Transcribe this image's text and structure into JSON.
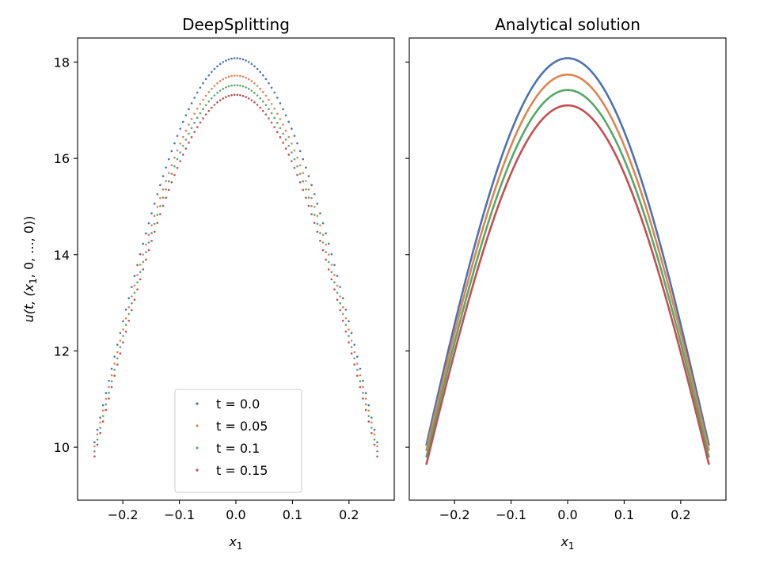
{
  "chart_data": [
    {
      "type": "scatter",
      "title": "DeepSplitting",
      "xlabel": "x",
      "xlabel_sub": "1",
      "ylabel": "u(t, (x",
      "ylabel_sub": "1",
      "ylabel_tail": ", 0, ..., 0))",
      "xlim": [
        -0.28,
        0.28
      ],
      "ylim": [
        8.9,
        18.5
      ],
      "xticks": [
        -0.2,
        -0.1,
        0.0,
        0.1,
        0.2
      ],
      "xticklabels": [
        "−0.2",
        "−0.1",
        "0.0",
        "0.1",
        "0.2"
      ],
      "yticks": [
        10,
        12,
        14,
        16,
        18
      ],
      "yticklabels": [
        "10",
        "12",
        "14",
        "16",
        "18"
      ],
      "legend": "bottom-center",
      "x_range": [
        -0.25,
        0.25
      ],
      "n_points": 100,
      "series": [
        {
          "name": "t = 0.0",
          "peak": 18.08,
          "edge": 9.72,
          "color": "#4c72b0"
        },
        {
          "name": "t = 0.05",
          "peak": 17.72,
          "edge": 9.65,
          "color": "#dd8452"
        },
        {
          "name": "t = 0.1",
          "peak": 17.52,
          "edge": 9.55,
          "color": "#55a868"
        },
        {
          "name": "t = 0.15",
          "peak": 17.32,
          "edge": 9.45,
          "color": "#c44e52"
        }
      ]
    },
    {
      "type": "line",
      "title": "Analytical solution",
      "xlabel": "x",
      "xlabel_sub": "1",
      "xlim": [
        -0.28,
        0.28
      ],
      "ylim": [
        8.9,
        18.5
      ],
      "xticks": [
        -0.2,
        -0.1,
        0.0,
        0.1,
        0.2
      ],
      "xticklabels": [
        "−0.2",
        "−0.1",
        "0.0",
        "0.1",
        "0.2"
      ],
      "yticks": [
        10,
        12,
        14,
        16,
        18
      ],
      "x_range": [
        -0.25,
        0.25
      ],
      "series": [
        {
          "peak": 18.08,
          "edge": 9.65,
          "color": "#4c72b0"
        },
        {
          "peak": 17.74,
          "edge": 9.55,
          "color": "#dd8452"
        },
        {
          "peak": 17.42,
          "edge": 9.42,
          "color": "#55a868"
        },
        {
          "peak": 17.1,
          "edge": 9.28,
          "color": "#c44e52"
        }
      ]
    }
  ]
}
